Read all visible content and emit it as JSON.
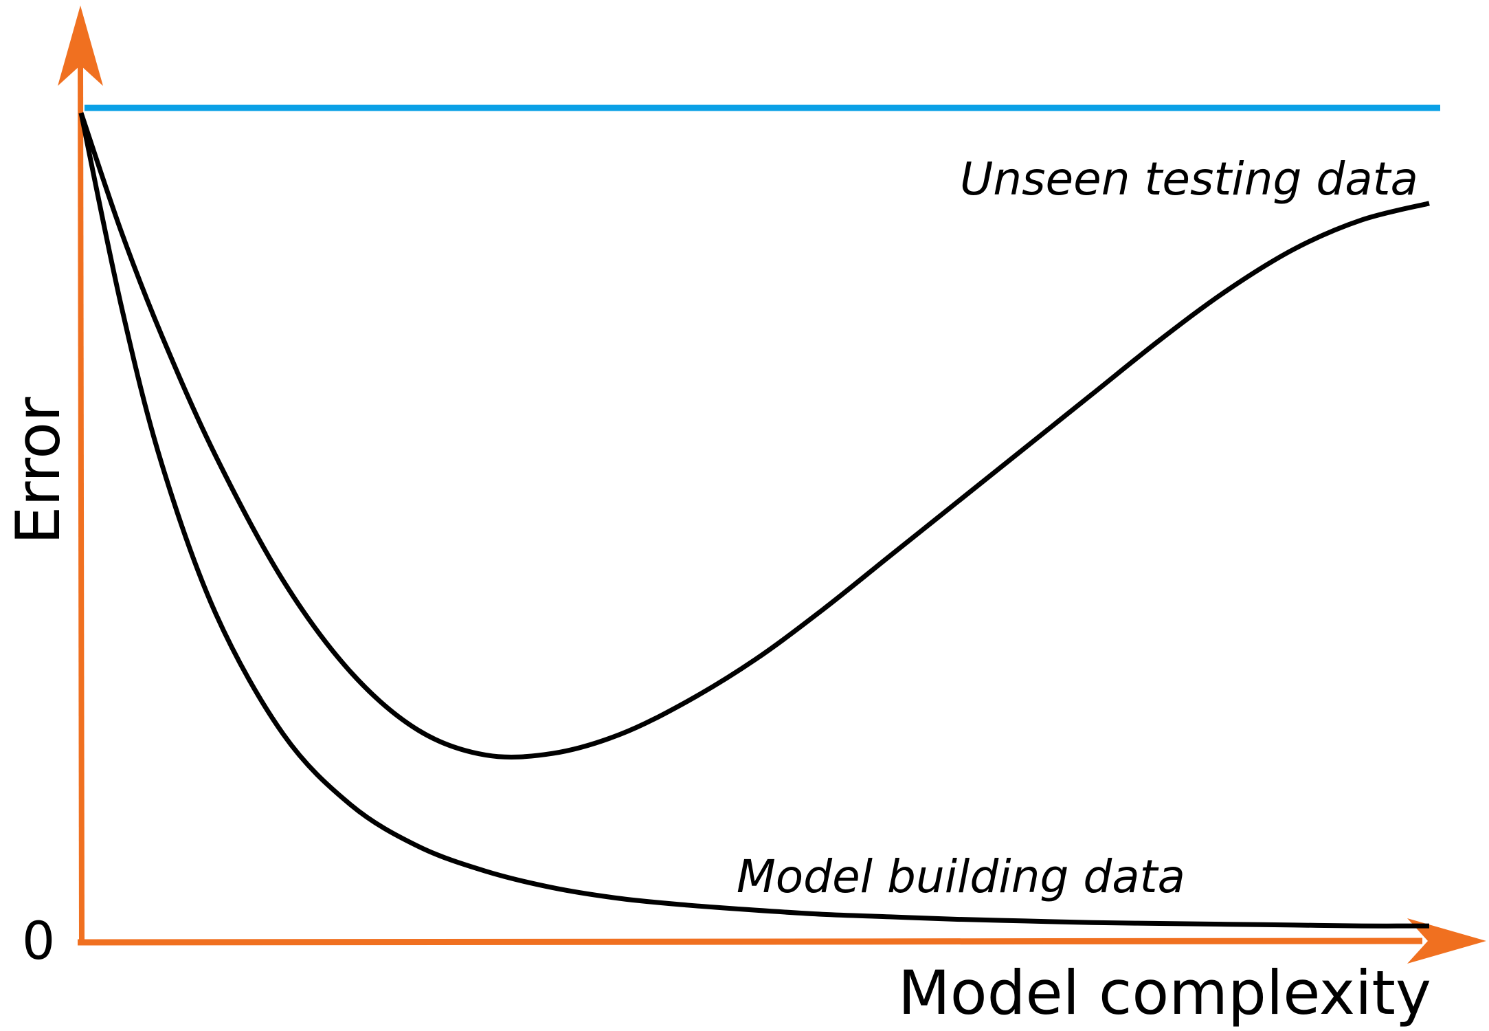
{
  "chart_data": {
    "type": "line",
    "title": "",
    "xlabel": "Model complexity",
    "ylabel": "Error",
    "y_tick_labels": [
      "0"
    ],
    "xlim": [
      0,
      100
    ],
    "ylim": [
      0,
      100
    ],
    "grid": false,
    "legend": "none",
    "reference_line": {
      "y": 100,
      "color": "#0aa0e6"
    },
    "series": [
      {
        "name": "Unseen testing data",
        "color": "#000000",
        "x": [
          0,
          3,
          6,
          10,
          15,
          20,
          25,
          30,
          35,
          40,
          45,
          50,
          55,
          60,
          65,
          70,
          75,
          80,
          85,
          90,
          95,
          100
        ],
        "y": [
          99.4,
          85.0,
          72.5,
          58.0,
          43.0,
          32.0,
          25.0,
          22.0,
          22.2,
          24.5,
          28.5,
          33.5,
          39.5,
          46.0,
          52.5,
          59.0,
          65.5,
          72.0,
          78.0,
          83.0,
          86.5,
          88.5
        ]
      },
      {
        "name": "Model building data",
        "color": "#000000",
        "x": [
          0,
          3,
          6,
          10,
          15,
          20,
          25,
          30,
          35,
          40,
          45,
          50,
          55,
          60,
          65,
          70,
          75,
          80,
          85,
          90,
          95,
          100
        ],
        "y": [
          99.4,
          76.0,
          57.0,
          39.0,
          24.5,
          16.0,
          11.0,
          8.0,
          6.0,
          4.7,
          3.9,
          3.3,
          2.8,
          2.5,
          2.2,
          2.0,
          1.8,
          1.7,
          1.6,
          1.5,
          1.4,
          1.4
        ]
      }
    ],
    "colors": {
      "axes": "#f07020",
      "reference": "#0aa0e6",
      "curves": "#000000"
    }
  }
}
